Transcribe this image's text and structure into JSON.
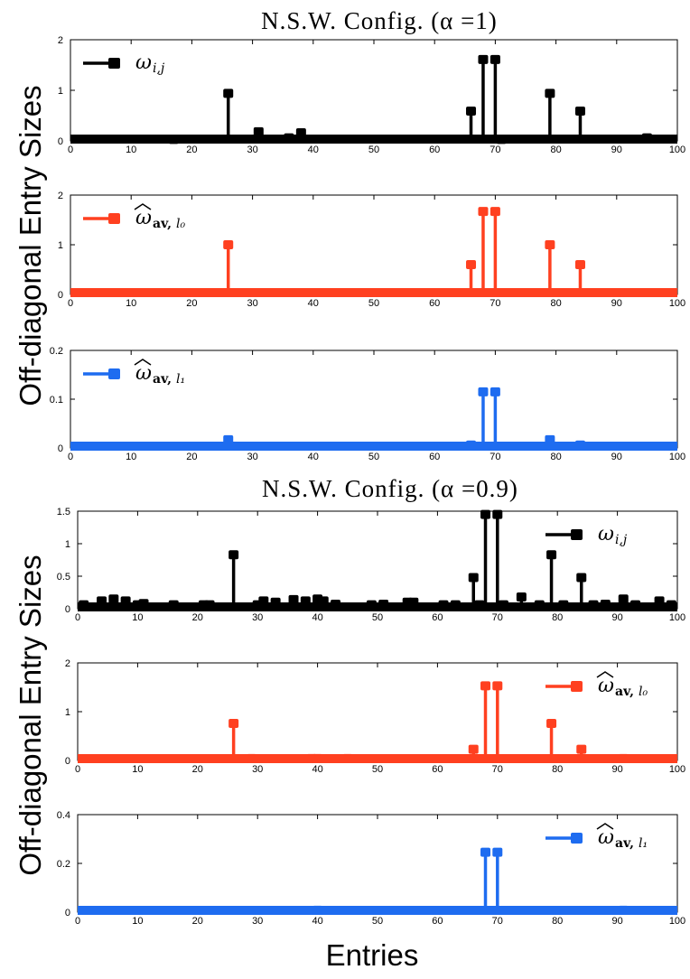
{
  "figure": {
    "titles": [
      "N.S.W. Config. (α =1)",
      "N.S.W. Config. (α =0.9)"
    ],
    "ylabel": "Off-diagonal Entry Sizes",
    "xlabel": "Entries"
  },
  "colors": {
    "black": "#000000",
    "red": "#ff4020",
    "blue": "#1e6cf0"
  },
  "chart_data": [
    {
      "type": "stem",
      "title": "N.S.W. Config. (α =1)",
      "legend": {
        "symbol": "ω",
        "sub": "i,j",
        "bold": "",
        "hat": false,
        "position": "top-left"
      },
      "color": "black",
      "xlim": [
        0,
        100
      ],
      "ylim": [
        0,
        2
      ],
      "xticks": [
        "0",
        "10",
        "20",
        "30",
        "40",
        "50",
        "60",
        "70",
        "80",
        "90",
        "100"
      ],
      "yticks": [
        "0",
        "1",
        "2"
      ],
      "x": [
        17,
        26,
        31,
        36,
        38,
        66,
        68,
        70,
        71,
        79,
        84,
        95
      ],
      "values": [
        0.03,
        0.94,
        0.18,
        0.06,
        0.16,
        0.59,
        1.61,
        1.61,
        0.03,
        0.94,
        0.59,
        0.06
      ]
    },
    {
      "type": "stem",
      "title": "",
      "legend": {
        "symbol": "ω",
        "sub": "l₀",
        "bold": "av",
        "hat": true,
        "position": "top-left"
      },
      "color": "red",
      "xlim": [
        0,
        100
      ],
      "ylim": [
        0,
        2
      ],
      "xticks": [
        "0",
        "10",
        "20",
        "30",
        "40",
        "50",
        "60",
        "70",
        "80",
        "90",
        "100"
      ],
      "yticks": [
        "0",
        "1",
        "2"
      ],
      "x": [
        26,
        66,
        68,
        70,
        79,
        84
      ],
      "values": [
        1.0,
        0.6,
        1.67,
        1.67,
        1.0,
        0.6
      ]
    },
    {
      "type": "stem",
      "title": "",
      "legend": {
        "symbol": "ω",
        "sub": "l₁",
        "bold": "av",
        "hat": true,
        "position": "top-left"
      },
      "color": "blue",
      "xlim": [
        0,
        100
      ],
      "ylim": [
        0,
        0.2
      ],
      "xticks": [
        "0",
        "10",
        "20",
        "30",
        "40",
        "50",
        "60",
        "70",
        "80",
        "90",
        "100"
      ],
      "yticks": [
        "0",
        "0.1",
        "0.2"
      ],
      "x": [
        26,
        66,
        68,
        70,
        79,
        84
      ],
      "values": [
        0.017,
        0.006,
        0.115,
        0.115,
        0.017,
        0.006
      ]
    },
    {
      "type": "stem",
      "title": "N.S.W. Config. (α =0.9)",
      "legend": {
        "symbol": "ω",
        "sub": "i,j",
        "bold": "",
        "hat": false,
        "position": "top-right"
      },
      "color": "black",
      "xlim": [
        0,
        100
      ],
      "ylim": [
        0,
        1.5
      ],
      "xticks": [
        "0",
        "10",
        "20",
        "30",
        "40",
        "50",
        "60",
        "70",
        "80",
        "90",
        "100"
      ],
      "yticks": [
        "0",
        "0.5",
        "1",
        "1.5"
      ],
      "x": [
        1,
        4,
        6,
        8,
        10,
        11,
        16,
        21,
        22,
        26,
        30,
        31,
        33,
        36,
        38,
        40,
        41,
        43,
        49,
        51,
        55,
        56,
        61,
        63,
        66,
        67,
        68,
        70,
        71,
        74,
        77,
        79,
        81,
        84,
        86,
        88,
        91,
        93,
        97,
        99
      ],
      "values": [
        0.06,
        0.12,
        0.15,
        0.12,
        0.06,
        0.08,
        0.06,
        0.06,
        0.06,
        0.83,
        0.06,
        0.12,
        0.1,
        0.14,
        0.12,
        0.15,
        0.12,
        0.07,
        0.06,
        0.07,
        0.1,
        0.1,
        0.06,
        0.06,
        0.48,
        0.06,
        1.45,
        1.45,
        0.06,
        0.18,
        0.06,
        0.83,
        0.06,
        0.48,
        0.06,
        0.07,
        0.15,
        0.06,
        0.12,
        0.06
      ]
    },
    {
      "type": "stem",
      "title": "",
      "legend": {
        "symbol": "ω",
        "sub": "l₀",
        "bold": "av",
        "hat": true,
        "position": "top-right"
      },
      "color": "red",
      "xlim": [
        0,
        100
      ],
      "ylim": [
        0,
        2
      ],
      "xticks": [
        "0",
        "10",
        "20",
        "30",
        "40",
        "50",
        "60",
        "70",
        "80",
        "90",
        "100"
      ],
      "yticks": [
        "0",
        "1",
        "2"
      ],
      "x": [
        26,
        29,
        39,
        40,
        45,
        66,
        68,
        70,
        79,
        84,
        91
      ],
      "values": [
        0.76,
        0.04,
        0.04,
        0.04,
        0.04,
        0.23,
        1.53,
        1.53,
        0.76,
        0.23,
        0.04
      ]
    },
    {
      "type": "stem",
      "title": "",
      "legend": {
        "symbol": "ω",
        "sub": "l₁",
        "bold": "av",
        "hat": true,
        "position": "top-right"
      },
      "color": "blue",
      "xlim": [
        0,
        100
      ],
      "ylim": [
        0,
        0.4
      ],
      "xticks": [
        "0",
        "10",
        "20",
        "30",
        "40",
        "50",
        "60",
        "70",
        "80",
        "90",
        "100"
      ],
      "yticks": [
        "0",
        "0.2",
        "0.4"
      ],
      "x": [
        40,
        68,
        70,
        91
      ],
      "values": [
        0.008,
        0.246,
        0.246,
        0.008
      ]
    }
  ]
}
